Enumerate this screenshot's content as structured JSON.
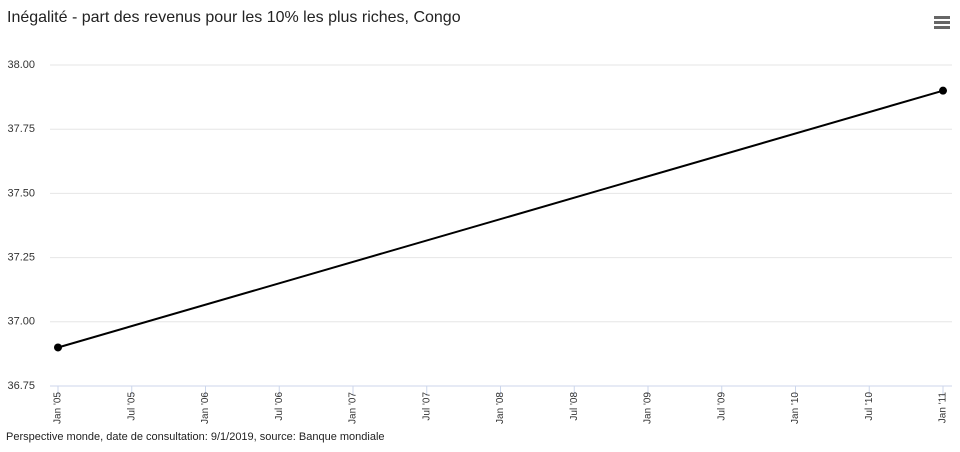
{
  "chart_data": {
    "type": "line",
    "title": "Inégalité - part des revenus pour les 10% les plus riches, Congo",
    "footer": "Perspective monde, date de consultation: 9/1/2019, source: Banque mondiale",
    "x": [
      2005,
      2011
    ],
    "series": [
      {
        "color": "#000000",
        "values": [
          36.9,
          37.9
        ]
      }
    ],
    "xlim": [
      2005,
      2011
    ],
    "xticks": [
      {
        "value": 2005,
        "label": "Jan '05"
      },
      {
        "value": 2005.5,
        "label": "Jul '05"
      },
      {
        "value": 2006,
        "label": "Jan '06"
      },
      {
        "value": 2006.5,
        "label": "Jul '06"
      },
      {
        "value": 2007,
        "label": "Jan '07"
      },
      {
        "value": 2007.5,
        "label": "Jul '07"
      },
      {
        "value": 2008,
        "label": "Jan '08"
      },
      {
        "value": 2008.5,
        "label": "Jul '08"
      },
      {
        "value": 2009,
        "label": "Jan '09"
      },
      {
        "value": 2009.5,
        "label": "Jul '09"
      },
      {
        "value": 2010,
        "label": "Jan '10"
      },
      {
        "value": 2010.5,
        "label": "Jul '10"
      },
      {
        "value": 2011,
        "label": "Jan '11"
      }
    ],
    "ylim": [
      36.75,
      38.0
    ],
    "yticks": [
      36.75,
      {
        "value": 37,
        "label": "37.00"
      },
      37.25,
      {
        "value": 37.5,
        "label": "37.50"
      },
      37.75,
      {
        "value": 38,
        "label": "38.00"
      }
    ],
    "grid": true
  }
}
